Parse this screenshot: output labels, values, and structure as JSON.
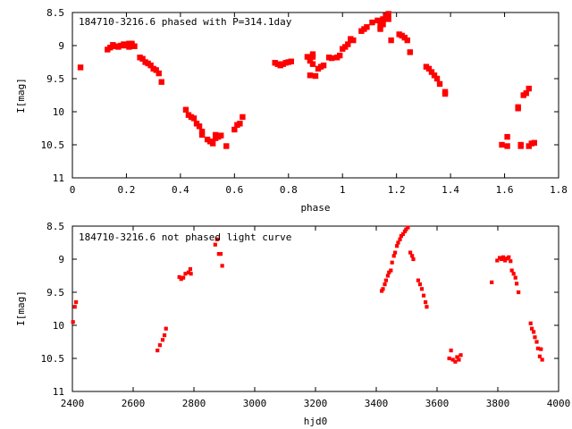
{
  "colors": {
    "points": "#ff0000",
    "axes": "#000000",
    "background": "#ffffff"
  },
  "chart_data": [
    {
      "type": "scatter",
      "title": "184710-3216.6 phased with P=314.1day",
      "xlabel": "phase",
      "ylabel": "I[mag]",
      "xlim": [
        0,
        1.8
      ],
      "ylim": [
        8.5,
        11
      ],
      "y_inverted": true,
      "grid": false,
      "x_ticks": [
        "0",
        "0.2",
        "0.4",
        "0.6",
        "0.8",
        "1",
        "1.2",
        "1.4",
        "1.6",
        "1.8"
      ],
      "y_ticks": [
        "8.5",
        "9",
        "9.5",
        "10",
        "10.5",
        "11"
      ],
      "series": [
        {
          "points": [
            [
              0.03,
              9.33
            ],
            [
              0.13,
              9.06
            ],
            [
              0.14,
              9.03
            ],
            [
              0.15,
              8.99
            ],
            [
              0.16,
              9.01
            ],
            [
              0.17,
              9.02
            ],
            [
              0.18,
              9.0
            ],
            [
              0.19,
              8.98
            ],
            [
              0.2,
              9.0
            ],
            [
              0.21,
              8.97
            ],
            [
              0.21,
              9.02
            ],
            [
              0.22,
              9.0
            ],
            [
              0.22,
              8.97
            ],
            [
              0.23,
              9.01
            ],
            [
              0.25,
              9.18
            ],
            [
              0.26,
              9.2
            ],
            [
              0.27,
              9.25
            ],
            [
              0.28,
              9.27
            ],
            [
              0.29,
              9.3
            ],
            [
              0.3,
              9.35
            ],
            [
              0.31,
              9.37
            ],
            [
              0.32,
              9.42
            ],
            [
              0.33,
              9.55
            ],
            [
              0.42,
              9.97
            ],
            [
              0.43,
              10.05
            ],
            [
              0.44,
              10.08
            ],
            [
              0.45,
              10.1
            ],
            [
              0.46,
              10.18
            ],
            [
              0.47,
              10.22
            ],
            [
              0.48,
              10.3
            ],
            [
              0.48,
              10.35
            ],
            [
              0.5,
              10.42
            ],
            [
              0.51,
              10.45
            ],
            [
              0.52,
              10.48
            ],
            [
              0.53,
              10.4
            ],
            [
              0.53,
              10.35
            ],
            [
              0.54,
              10.38
            ],
            [
              0.55,
              10.36
            ],
            [
              0.57,
              10.52
            ],
            [
              0.6,
              10.27
            ],
            [
              0.61,
              10.2
            ],
            [
              0.62,
              10.18
            ],
            [
              0.63,
              10.08
            ],
            [
              0.75,
              9.26
            ],
            [
              0.76,
              9.28
            ],
            [
              0.77,
              9.3
            ],
            [
              0.78,
              9.28
            ],
            [
              0.79,
              9.26
            ],
            [
              0.8,
              9.25
            ],
            [
              0.81,
              9.24
            ],
            [
              0.87,
              9.17
            ],
            [
              0.88,
              9.2
            ],
            [
              0.88,
              9.23
            ],
            [
              0.88,
              9.45
            ],
            [
              0.89,
              9.13
            ],
            [
              0.89,
              9.17
            ],
            [
              0.89,
              9.28
            ],
            [
              0.9,
              9.46
            ],
            [
              0.91,
              9.35
            ],
            [
              0.92,
              9.32
            ],
            [
              0.93,
              9.3
            ],
            [
              0.95,
              9.18
            ],
            [
              0.96,
              9.19
            ],
            [
              0.98,
              9.18
            ],
            [
              0.99,
              9.15
            ],
            [
              1.0,
              9.05
            ],
            [
              1.01,
              9.02
            ],
            [
              1.02,
              8.98
            ],
            [
              1.03,
              8.9
            ],
            [
              1.04,
              8.92
            ],
            [
              1.07,
              8.78
            ],
            [
              1.08,
              8.75
            ],
            [
              1.09,
              8.72
            ],
            [
              1.11,
              8.65
            ],
            [
              1.13,
              8.62
            ],
            [
              1.14,
              8.7
            ],
            [
              1.14,
              8.75
            ],
            [
              1.15,
              8.6
            ],
            [
              1.15,
              8.68
            ],
            [
              1.16,
              8.55
            ],
            [
              1.17,
              8.52
            ],
            [
              1.17,
              8.6
            ],
            [
              1.18,
              8.92
            ],
            [
              1.21,
              8.83
            ],
            [
              1.22,
              8.85
            ],
            [
              1.23,
              8.88
            ],
            [
              1.24,
              8.92
            ],
            [
              1.25,
              9.1
            ],
            [
              1.31,
              9.32
            ],
            [
              1.32,
              9.35
            ],
            [
              1.33,
              9.4
            ],
            [
              1.34,
              9.45
            ],
            [
              1.35,
              9.5
            ],
            [
              1.36,
              9.58
            ],
            [
              1.38,
              9.7
            ],
            [
              1.38,
              9.73
            ],
            [
              1.59,
              10.5
            ],
            [
              1.61,
              10.52
            ],
            [
              1.61,
              10.38
            ],
            [
              1.65,
              9.95
            ],
            [
              1.65,
              9.93
            ],
            [
              1.66,
              10.5
            ],
            [
              1.66,
              10.52
            ],
            [
              1.67,
              9.75
            ],
            [
              1.68,
              9.72
            ],
            [
              1.69,
              9.65
            ],
            [
              1.69,
              10.52
            ],
            [
              1.7,
              10.48
            ],
            [
              1.71,
              10.47
            ]
          ]
        }
      ]
    },
    {
      "type": "scatter",
      "title": "184710-3216.6 not phased light curve",
      "xlabel": "hjd0",
      "ylabel": "I[mag]",
      "xlim": [
        2400,
        4000
      ],
      "ylim": [
        8.5,
        11
      ],
      "y_inverted": true,
      "grid": false,
      "x_ticks": [
        "2400",
        "2600",
        "2800",
        "3000",
        "3200",
        "3400",
        "3600",
        "3800",
        "4000"
      ],
      "y_ticks": [
        "8.5",
        "9",
        "9.5",
        "10",
        "10.5",
        "11"
      ],
      "series": [
        {
          "points": [
            [
              2402,
              9.95
            ],
            [
              2408,
              9.72
            ],
            [
              2412,
              9.65
            ],
            [
              2680,
              10.38
            ],
            [
              2688,
              10.3
            ],
            [
              2697,
              10.22
            ],
            [
              2703,
              10.15
            ],
            [
              2708,
              10.05
            ],
            [
              2752,
              9.27
            ],
            [
              2758,
              9.3
            ],
            [
              2765,
              9.28
            ],
            [
              2772,
              9.22
            ],
            [
              2782,
              9.2
            ],
            [
              2788,
              9.15
            ],
            [
              2790,
              9.22
            ],
            [
              2870,
              8.78
            ],
            [
              2876,
              8.7
            ],
            [
              2882,
              8.92
            ],
            [
              2888,
              8.92
            ],
            [
              2893,
              9.1
            ],
            [
              3418,
              9.48
            ],
            [
              3422,
              9.45
            ],
            [
              3428,
              9.38
            ],
            [
              3432,
              9.32
            ],
            [
              3438,
              9.25
            ],
            [
              3442,
              9.2
            ],
            [
              3448,
              9.17
            ],
            [
              3452,
              9.05
            ],
            [
              3458,
              8.95
            ],
            [
              3462,
              8.9
            ],
            [
              3468,
              8.8
            ],
            [
              3472,
              8.75
            ],
            [
              3478,
              8.7
            ],
            [
              3482,
              8.65
            ],
            [
              3488,
              8.62
            ],
            [
              3494,
              8.58
            ],
            [
              3498,
              8.55
            ],
            [
              3504,
              8.52
            ],
            [
              3512,
              8.9
            ],
            [
              3518,
              8.95
            ],
            [
              3522,
              9.0
            ],
            [
              3538,
              9.32
            ],
            [
              3544,
              9.38
            ],
            [
              3550,
              9.45
            ],
            [
              3556,
              9.55
            ],
            [
              3562,
              9.65
            ],
            [
              3566,
              9.72
            ],
            [
              3640,
              10.5
            ],
            [
              3646,
              10.38
            ],
            [
              3652,
              10.52
            ],
            [
              3660,
              10.55
            ],
            [
              3666,
              10.48
            ],
            [
              3672,
              10.52
            ],
            [
              3678,
              10.45
            ],
            [
              3780,
              9.35
            ],
            [
              3798,
              9.02
            ],
            [
              3806,
              8.98
            ],
            [
              3812,
              9.0
            ],
            [
              3818,
              8.97
            ],
            [
              3824,
              9.02
            ],
            [
              3830,
              8.99
            ],
            [
              3836,
              8.97
            ],
            [
              3842,
              9.03
            ],
            [
              3846,
              9.17
            ],
            [
              3852,
              9.22
            ],
            [
              3858,
              9.28
            ],
            [
              3862,
              9.37
            ],
            [
              3868,
              9.5
            ],
            [
              3908,
              9.97
            ],
            [
              3912,
              10.05
            ],
            [
              3918,
              10.1
            ],
            [
              3922,
              10.18
            ],
            [
              3928,
              10.25
            ],
            [
              3932,
              10.35
            ],
            [
              3938,
              10.47
            ],
            [
              3942,
              10.36
            ],
            [
              3946,
              10.52
            ]
          ]
        }
      ]
    }
  ]
}
